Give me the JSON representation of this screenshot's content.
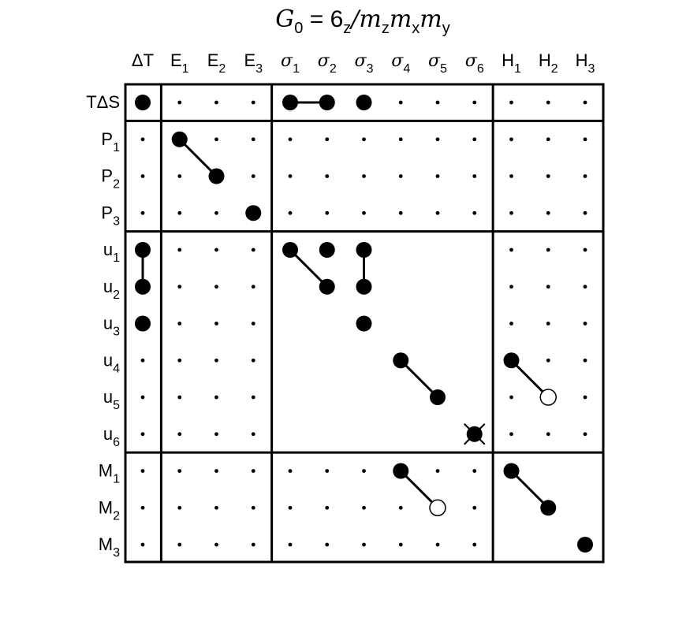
{
  "title": {
    "main": "G",
    "main_sub": "0",
    "eq": " = 6",
    "sub1": "z",
    "slash": "/",
    "m1": "m",
    "m1_sub": "z",
    "m2": "m",
    "m2_sub": "x",
    "m3": "m",
    "m3_sub": "y"
  },
  "columns": [
    {
      "base": "ΔT",
      "sub": "",
      "greek": false
    },
    {
      "base": "E",
      "sub": "1",
      "greek": false
    },
    {
      "base": "E",
      "sub": "2",
      "greek": false
    },
    {
      "base": "E",
      "sub": "3",
      "greek": false
    },
    {
      "base": "σ",
      "sub": "1",
      "greek": true
    },
    {
      "base": "σ",
      "sub": "2",
      "greek": true
    },
    {
      "base": "σ",
      "sub": "3",
      "greek": true
    },
    {
      "base": "σ",
      "sub": "4",
      "greek": true
    },
    {
      "base": "σ",
      "sub": "5",
      "greek": true
    },
    {
      "base": "σ",
      "sub": "6",
      "greek": true
    },
    {
      "base": "H",
      "sub": "1",
      "greek": false
    },
    {
      "base": "H",
      "sub": "2",
      "greek": false
    },
    {
      "base": "H",
      "sub": "3",
      "greek": false
    }
  ],
  "rows": [
    {
      "base": "TΔS",
      "sub": ""
    },
    {
      "base": "P",
      "sub": "1"
    },
    {
      "base": "P",
      "sub": "2"
    },
    {
      "base": "P",
      "sub": "3"
    },
    {
      "base": "u",
      "sub": "1"
    },
    {
      "base": "u",
      "sub": "2"
    },
    {
      "base": "u",
      "sub": "3"
    },
    {
      "base": "u",
      "sub": "4"
    },
    {
      "base": "u",
      "sub": "5"
    },
    {
      "base": "u",
      "sub": "6"
    },
    {
      "base": "M",
      "sub": "1"
    },
    {
      "base": "M",
      "sub": "2"
    },
    {
      "base": "M",
      "sub": "3"
    }
  ],
  "column_groups": [
    [
      0
    ],
    [
      1,
      2,
      3
    ],
    [
      4,
      5,
      6,
      7,
      8,
      9
    ],
    [
      10,
      11,
      12
    ]
  ],
  "row_groups": [
    [
      0
    ],
    [
      1,
      2,
      3
    ],
    [
      4,
      5,
      6,
      7,
      8,
      9
    ],
    [
      10,
      11,
      12
    ]
  ],
  "blank_regions": [
    {
      "rows": [
        4,
        9
      ],
      "cols": [
        4,
        9
      ]
    },
    {
      "rows": [
        10,
        12
      ],
      "cols": [
        10,
        12
      ]
    }
  ],
  "filled_cells": [
    [
      0,
      0
    ],
    [
      0,
      4
    ],
    [
      0,
      5
    ],
    [
      0,
      6
    ],
    [
      1,
      1
    ],
    [
      2,
      2
    ],
    [
      3,
      3
    ],
    [
      4,
      0
    ],
    [
      4,
      4
    ],
    [
      4,
      5
    ],
    [
      4,
      6
    ],
    [
      5,
      0
    ],
    [
      5,
      5
    ],
    [
      5,
      6
    ],
    [
      6,
      0
    ],
    [
      6,
      6
    ],
    [
      7,
      7
    ],
    [
      7,
      10
    ],
    [
      8,
      8
    ],
    [
      9,
      9
    ],
    [
      10,
      7
    ],
    [
      10,
      10
    ],
    [
      11,
      11
    ],
    [
      12,
      12
    ]
  ],
  "open_cells": [
    [
      8,
      11
    ],
    [
      11,
      8
    ]
  ],
  "crossed_cells": [
    [
      9,
      9
    ]
  ],
  "links": [
    [
      [
        0,
        4
      ],
      [
        0,
        5
      ]
    ],
    [
      [
        1,
        1
      ],
      [
        2,
        2
      ]
    ],
    [
      [
        4,
        0
      ],
      [
        5,
        0
      ]
    ],
    [
      [
        4,
        4
      ],
      [
        5,
        5
      ]
    ],
    [
      [
        4,
        6
      ],
      [
        5,
        6
      ]
    ],
    [
      [
        7,
        7
      ],
      [
        8,
        8
      ]
    ],
    [
      [
        7,
        10
      ],
      [
        8,
        11
      ]
    ],
    [
      [
        10,
        7
      ],
      [
        11,
        8
      ]
    ],
    [
      [
        10,
        10
      ],
      [
        11,
        11
      ]
    ]
  ],
  "colors": {
    "ink": "#000000",
    "background": "#ffffff"
  }
}
